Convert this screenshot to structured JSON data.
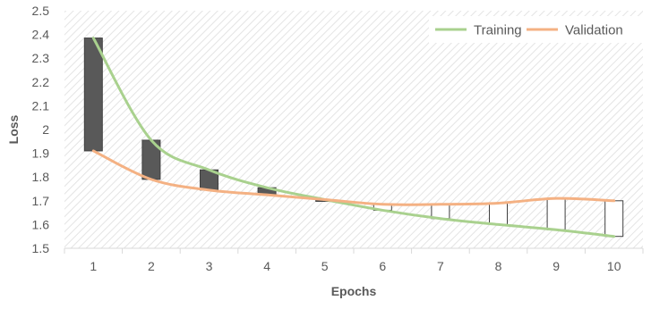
{
  "chart_data": {
    "type": "line",
    "title": "",
    "xlabel": "Epochs",
    "ylabel": "Loss",
    "x": [
      1,
      2,
      3,
      4,
      5,
      6,
      7,
      8,
      9,
      10
    ],
    "xlim": [
      0.5,
      10.5
    ],
    "ylim": [
      1.5,
      2.5
    ],
    "y_ticks": [
      "1.5",
      "1.6",
      "1.7",
      "1.8",
      "1.9",
      "2",
      "2.1",
      "2.2",
      "2.3",
      "2.4",
      "2.5"
    ],
    "grid": false,
    "legend_position": "top-right",
    "series": [
      {
        "name": "Training",
        "color": "#a9d18e",
        "values": [
          2.385,
          1.955,
          1.83,
          1.755,
          1.705,
          1.66,
          1.625,
          1.6,
          1.578,
          1.55
        ]
      },
      {
        "name": "Validation",
        "color": "#f4b183",
        "values": [
          1.91,
          1.79,
          1.745,
          1.725,
          1.705,
          1.685,
          1.685,
          1.69,
          1.71,
          1.7
        ]
      }
    ],
    "up_down_bars": {
      "down_color": "#595959",
      "up_color": "#ffffff"
    }
  }
}
